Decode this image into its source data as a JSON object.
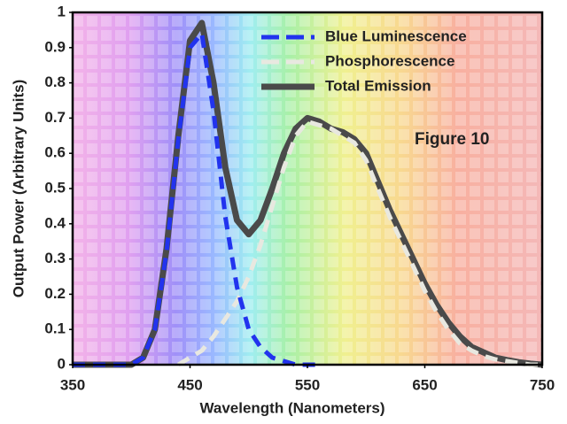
{
  "chart_data": {
    "type": "line",
    "xlabel": "Wavelength (Nanometers)",
    "ylabel": "Output Power (Arbitrary Units)",
    "annotation": "Figure 10",
    "legend": "upper-center",
    "x": [
      350,
      360,
      370,
      380,
      390,
      400,
      410,
      420,
      430,
      440,
      450,
      460,
      470,
      480,
      490,
      500,
      510,
      520,
      530,
      540,
      550,
      560,
      570,
      580,
      590,
      600,
      610,
      620,
      630,
      640,
      650,
      660,
      670,
      680,
      690,
      700,
      710,
      720,
      730,
      740,
      750
    ],
    "series": [
      {
        "name": "Blue Luminescence",
        "color": "#2233ee",
        "dash": true,
        "values": [
          0,
          0,
          0,
          0,
          0,
          0,
          0.02,
          0.1,
          0.32,
          0.64,
          0.9,
          0.94,
          0.72,
          0.42,
          0.22,
          0.1,
          0.05,
          0.02,
          0.01,
          0,
          0,
          0,
          null,
          null,
          null,
          null,
          null,
          null,
          null,
          null,
          null,
          null,
          null,
          null,
          null,
          null,
          null,
          null,
          null,
          null,
          null
        ]
      },
      {
        "name": "Phosphorescence",
        "color": "#e8e8e0",
        "dash": true,
        "values": [
          null,
          null,
          null,
          null,
          null,
          null,
          null,
          null,
          null,
          0,
          0.02,
          0.04,
          0.08,
          0.13,
          0.18,
          0.25,
          0.34,
          0.45,
          0.56,
          0.65,
          0.69,
          0.68,
          0.67,
          0.65,
          0.63,
          0.58,
          0.5,
          0.42,
          0.35,
          0.28,
          0.21,
          0.15,
          0.1,
          0.06,
          0.04,
          0.025,
          0.015,
          0.01,
          0.005,
          0,
          0
        ]
      },
      {
        "name": "Total Emission",
        "color": "#4a4a4a",
        "dash": false,
        "values": [
          0,
          0,
          0,
          0,
          0,
          0,
          0.02,
          0.1,
          0.33,
          0.65,
          0.92,
          0.97,
          0.8,
          0.56,
          0.41,
          0.37,
          0.41,
          0.5,
          0.6,
          0.67,
          0.7,
          0.69,
          0.67,
          0.66,
          0.64,
          0.6,
          0.52,
          0.44,
          0.37,
          0.3,
          0.23,
          0.17,
          0.12,
          0.08,
          0.05,
          0.035,
          0.02,
          0.013,
          0.007,
          0.003,
          0
        ]
      }
    ],
    "xlim": [
      350,
      750
    ],
    "xticks": [
      350,
      450,
      550,
      650,
      750
    ],
    "ylim": [
      0,
      1
    ],
    "yticks": [
      0,
      0.1,
      0.2,
      0.3,
      0.4,
      0.5,
      0.6,
      0.7,
      0.8,
      0.9,
      1
    ]
  }
}
